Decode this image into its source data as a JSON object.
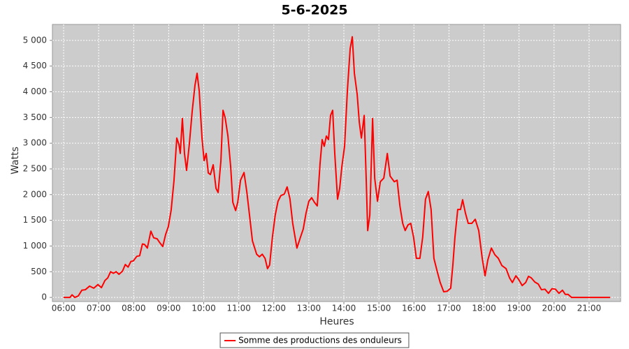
{
  "chart_data": {
    "type": "line",
    "title": "5-6-2025",
    "x_label": "Heures",
    "y_label": "Watts",
    "x": [
      6.0,
      6.18,
      6.24,
      6.32,
      6.42,
      6.52,
      6.62,
      6.74,
      6.86,
      6.98,
      7.08,
      7.18,
      7.26,
      7.34,
      7.42,
      7.5,
      7.58,
      7.68,
      7.76,
      7.84,
      7.92,
      7.99,
      8.09,
      8.17,
      8.25,
      8.31,
      8.39,
      8.49,
      8.57,
      8.67,
      8.75,
      8.83,
      8.91,
      8.99,
      9.07,
      9.15,
      9.23,
      9.29,
      9.33,
      9.39,
      9.45,
      9.51,
      9.59,
      9.67,
      9.75,
      9.81,
      9.87,
      9.95,
      10.01,
      10.07,
      10.13,
      10.19,
      10.27,
      10.35,
      10.41,
      10.49,
      10.55,
      10.61,
      10.69,
      10.77,
      10.83,
      10.91,
      10.97,
      11.05,
      11.15,
      11.23,
      11.31,
      11.39,
      11.51,
      11.59,
      11.67,
      11.75,
      11.82,
      11.88,
      11.96,
      12.04,
      12.12,
      12.2,
      12.3,
      12.38,
      12.46,
      12.54,
      12.66,
      12.76,
      12.84,
      12.92,
      13.0,
      13.08,
      13.16,
      13.24,
      13.32,
      13.38,
      13.44,
      13.5,
      13.56,
      13.62,
      13.68,
      13.74,
      13.82,
      13.88,
      13.94,
      14.02,
      14.1,
      14.18,
      14.24,
      14.3,
      14.38,
      14.44,
      14.5,
      14.58,
      14.64,
      14.68,
      14.74,
      14.82,
      14.88,
      14.96,
      15.04,
      15.14,
      15.24,
      15.32,
      15.44,
      15.52,
      15.6,
      15.68,
      15.75,
      15.83,
      15.91,
      15.99,
      16.07,
      16.17,
      16.25,
      16.33,
      16.41,
      16.49,
      16.57,
      16.67,
      16.75,
      16.85,
      16.95,
      17.05,
      17.11,
      17.17,
      17.25,
      17.33,
      17.39,
      17.47,
      17.55,
      17.65,
      17.75,
      17.85,
      17.95,
      18.03,
      18.11,
      18.21,
      18.31,
      18.41,
      18.51,
      18.63,
      18.73,
      18.81,
      18.91,
      18.99,
      19.09,
      19.19,
      19.27,
      19.35,
      19.45,
      19.55,
      19.64,
      19.74,
      19.84,
      19.94,
      20.04,
      20.14,
      20.24,
      20.32,
      20.4,
      20.5,
      20.74,
      21.6
    ],
    "series": [
      {
        "name": "Somme des productions des onduleurs",
        "color": "#ff0000",
        "values": [
          0,
          0,
          50,
          0,
          30,
          140,
          150,
          220,
          180,
          250,
          190,
          330,
          380,
          500,
          470,
          500,
          450,
          510,
          640,
          590,
          700,
          710,
          800,
          810,
          1040,
          1030,
          960,
          1290,
          1160,
          1140,
          1060,
          990,
          1220,
          1380,
          1700,
          2270,
          3100,
          2980,
          2800,
          3480,
          2800,
          2470,
          2990,
          3620,
          4130,
          4360,
          4020,
          3100,
          2660,
          2800,
          2420,
          2390,
          2580,
          2120,
          2040,
          2660,
          3640,
          3500,
          3140,
          2530,
          1850,
          1690,
          1850,
          2280,
          2430,
          2050,
          1580,
          1100,
          840,
          790,
          840,
          760,
          560,
          630,
          1170,
          1600,
          1870,
          1980,
          2010,
          2150,
          1920,
          1440,
          960,
          1170,
          1330,
          1640,
          1870,
          1940,
          1850,
          1780,
          2600,
          3070,
          2940,
          3140,
          3070,
          3540,
          3640,
          2800,
          1910,
          2120,
          2530,
          2940,
          4020,
          4840,
          5070,
          4360,
          3950,
          3410,
          3100,
          3540,
          2250,
          1300,
          1600,
          3480,
          2320,
          1870,
          2250,
          2320,
          2800,
          2360,
          2250,
          2280,
          1780,
          1440,
          1300,
          1410,
          1440,
          1170,
          760,
          760,
          1170,
          1910,
          2060,
          1710,
          760,
          490,
          290,
          110,
          120,
          180,
          620,
          1170,
          1710,
          1710,
          1900,
          1640,
          1440,
          1440,
          1520,
          1300,
          760,
          420,
          730,
          960,
          830,
          760,
          620,
          560,
          380,
          290,
          420,
          350,
          230,
          290,
          410,
          380,
          300,
          260,
          150,
          160,
          80,
          170,
          160,
          80,
          140,
          60,
          60,
          0,
          0,
          0
        ]
      }
    ],
    "xlim": [
      5.68,
      21.9
    ],
    "xticks": [
      {
        "value": 6,
        "label": "06:00"
      },
      {
        "value": 7,
        "label": "07:00"
      },
      {
        "value": 8,
        "label": "08:00"
      },
      {
        "value": 9,
        "label": "09:00"
      },
      {
        "value": 10,
        "label": "10:00"
      },
      {
        "value": 11,
        "label": "11:00"
      },
      {
        "value": 12,
        "label": "12:00"
      },
      {
        "value": 13,
        "label": "13:00"
      },
      {
        "value": 14,
        "label": "14:00"
      },
      {
        "value": 15,
        "label": "15:00"
      },
      {
        "value": 16,
        "label": "16:00"
      },
      {
        "value": 17,
        "label": "17:00"
      },
      {
        "value": 18,
        "label": "18:00"
      },
      {
        "value": 19,
        "label": "19:00"
      },
      {
        "value": 20,
        "label": "20:00"
      },
      {
        "value": 21,
        "label": "21:00"
      }
    ],
    "ylim": [
      -80,
      5310
    ],
    "yticks": [
      0,
      500,
      {
        "value": 1000,
        "label": "1 000"
      },
      {
        "value": 1500,
        "label": "1 500"
      },
      {
        "value": 2000,
        "label": "2 000"
      },
      {
        "value": 2500,
        "label": "2 500"
      },
      {
        "value": 3000,
        "label": "3 000"
      },
      {
        "value": 3500,
        "label": "3 500"
      },
      {
        "value": 4000,
        "label": "4 000"
      },
      {
        "value": 4500,
        "label": "4 500"
      },
      {
        "value": 5000,
        "label": "5 000"
      }
    ],
    "grid": true,
    "legend": "bottom",
    "background": "#cccccc"
  }
}
